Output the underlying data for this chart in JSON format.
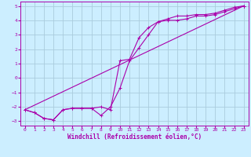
{
  "xlabel": "Windchill (Refroidissement éolien,°C)",
  "xlim": [
    -0.5,
    23.5
  ],
  "ylim": [
    -3.3,
    5.3
  ],
  "xticks": [
    0,
    1,
    2,
    3,
    4,
    5,
    6,
    7,
    8,
    9,
    10,
    11,
    12,
    13,
    14,
    15,
    16,
    17,
    18,
    19,
    20,
    21,
    22,
    23
  ],
  "yticks": [
    -3,
    -2,
    -1,
    0,
    1,
    2,
    3,
    4,
    5
  ],
  "bg_color": "#cceeff",
  "grid_color": "#aaccdd",
  "line_color": "#aa00aa",
  "spine_color": "#aa00aa",
  "line1_x": [
    0,
    1,
    2,
    3,
    4,
    5,
    6,
    7,
    8,
    9,
    10,
    11,
    12,
    13,
    14,
    15,
    16,
    17,
    18,
    19,
    20,
    21,
    22,
    23
  ],
  "line1_y": [
    -2.2,
    -2.4,
    -2.8,
    -2.9,
    -2.2,
    -2.1,
    -2.1,
    -2.1,
    -2.0,
    -2.2,
    1.2,
    1.3,
    2.8,
    3.5,
    3.9,
    4.0,
    4.0,
    4.1,
    4.3,
    4.3,
    4.4,
    4.6,
    4.8,
    5.0
  ],
  "line2_x": [
    0,
    1,
    2,
    3,
    4,
    5,
    6,
    7,
    8,
    9,
    10,
    11,
    12,
    13,
    14,
    15,
    16,
    17,
    18,
    19,
    20,
    21,
    22,
    23
  ],
  "line2_y": [
    -2.2,
    -2.4,
    -2.8,
    -2.9,
    -2.2,
    -2.1,
    -2.1,
    -2.1,
    -2.6,
    -2.0,
    -0.7,
    1.2,
    2.1,
    3.0,
    3.9,
    4.1,
    4.3,
    4.3,
    4.4,
    4.4,
    4.5,
    4.7,
    4.9,
    5.0
  ],
  "line3_x": [
    0,
    23
  ],
  "line3_y": [
    -2.2,
    5.0
  ],
  "tick_fontsize": 4.5,
  "label_fontsize": 5.5
}
